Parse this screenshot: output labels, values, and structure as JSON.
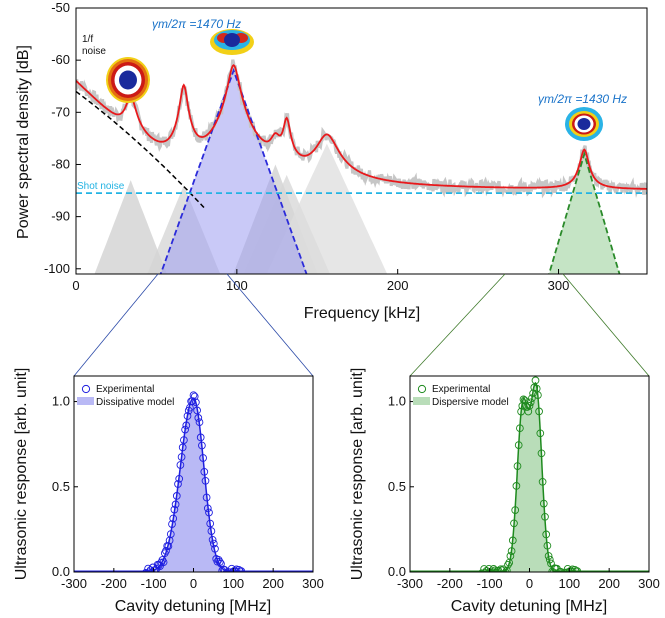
{
  "chart_data": [
    {
      "id": "psd",
      "type": "line",
      "xlabel": "Frequency [kHz]",
      "ylabel": "Power spectral density [dB]",
      "xlim": [
        0,
        355
      ],
      "ylim": [
        -101,
        -50
      ],
      "xticks": [
        0,
        100,
        200,
        300
      ],
      "yticks": [
        -50,
        -60,
        -70,
        -80,
        -90,
        -100
      ],
      "peaks": [
        {
          "freq": 34,
          "height": -68,
          "width": 3
        },
        {
          "freq": 67,
          "height": -65,
          "width": 2
        },
        {
          "freq": 98,
          "height": -61,
          "width": 3
        },
        {
          "freq": 124,
          "height": -77,
          "width": 3
        },
        {
          "freq": 131,
          "height": -72,
          "width": 2
        },
        {
          "freq": 156,
          "height": -75,
          "width": 6
        },
        {
          "freq": 316,
          "height": -78,
          "width": 2.5
        }
      ],
      "noise_floor_db": -85,
      "shot_noise_db": -85.5,
      "annotations": {
        "flicker_noise": "1/f\nnoise",
        "shot_noise": "Shot noise",
        "mode1": "γm/2π =1470 Hz",
        "mode2": "γm/2π =1430 Hz"
      },
      "series": [
        {
          "name": "measured PSD",
          "color": "#bfbfbf"
        },
        {
          "name": "fit",
          "color": "#e8191c"
        },
        {
          "name": "1/f noise",
          "color": "#000000"
        },
        {
          "name": "shot noise",
          "color": "#22b3e3"
        },
        {
          "name": "dissipative mode",
          "color": "#2b2bd9"
        },
        {
          "name": "dispersive mode",
          "color": "#2a8a2a"
        }
      ]
    },
    {
      "id": "dissipative",
      "type": "scatter",
      "xlabel": "Cavity detuning [MHz]",
      "ylabel": "Ultrasonic response [arb. unit]",
      "xlim": [
        -300,
        300
      ],
      "ylim": [
        0,
        1.15
      ],
      "xticks": [
        -300,
        -200,
        -100,
        0,
        100,
        200,
        300
      ],
      "yticks": [
        0.0,
        0.5,
        1.0
      ],
      "legend": [
        "Experimental",
        "Dissipative model"
      ],
      "model": {
        "shape": "single-peak",
        "center": 0,
        "peak": 1.02,
        "sigma_left": 33,
        "sigma_right": 26
      },
      "color": "#1f1fe0",
      "fill": "#b9b9f5"
    },
    {
      "id": "dispersive",
      "type": "scatter",
      "xlabel": "Cavity detuning [MHz]",
      "ylabel": "Ultrasonic response [arb. unit]",
      "xlim": [
        -300,
        300
      ],
      "ylim": [
        0,
        1.15
      ],
      "xticks": [
        -300,
        -200,
        -100,
        0,
        100,
        200,
        300
      ],
      "yticks": [
        0.0,
        0.5,
        1.0
      ],
      "legend": [
        "Experimental",
        "Dispersive model"
      ],
      "model": {
        "shape": "double-peak",
        "centers": [
          -17,
          17
        ],
        "peaks": [
          0.95,
          1.05
        ],
        "sigma": 14
      },
      "color": "#1e8a1e",
      "fill": "#b9ddb9"
    }
  ]
}
